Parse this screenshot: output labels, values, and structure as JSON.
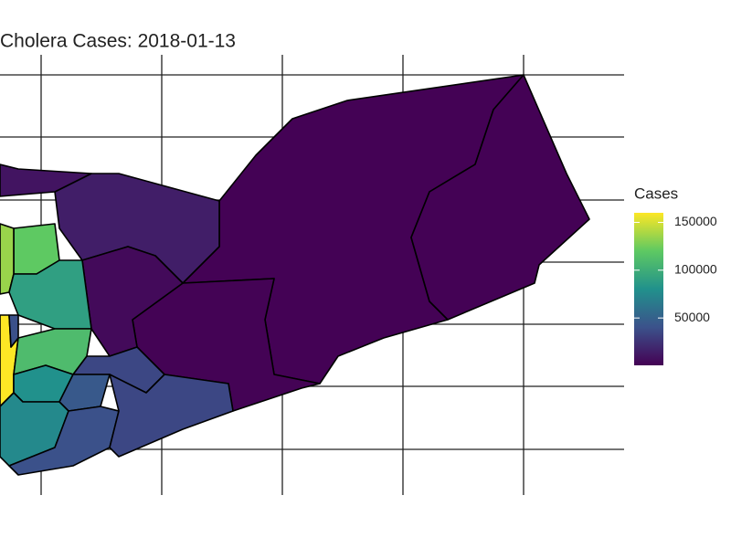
{
  "chart_data": {
    "type": "choropleth",
    "title": "Cholera Cases: 2018-01-13",
    "legend_title": "Cases",
    "colors": [
      "#440154",
      "#3b528b",
      "#21918c",
      "#5ec962",
      "#fde725"
    ],
    "color_lim": [
      500,
      160000
    ],
    "color_ticks": [
      50000,
      100000,
      150000
    ],
    "values": [
      1000,
      1000,
      1500,
      15000,
      10000,
      5000,
      120000,
      135000,
      90000,
      160000,
      110000,
      40000,
      80000,
      35000,
      45000,
      75000,
      40000,
      35000
    ]
  }
}
